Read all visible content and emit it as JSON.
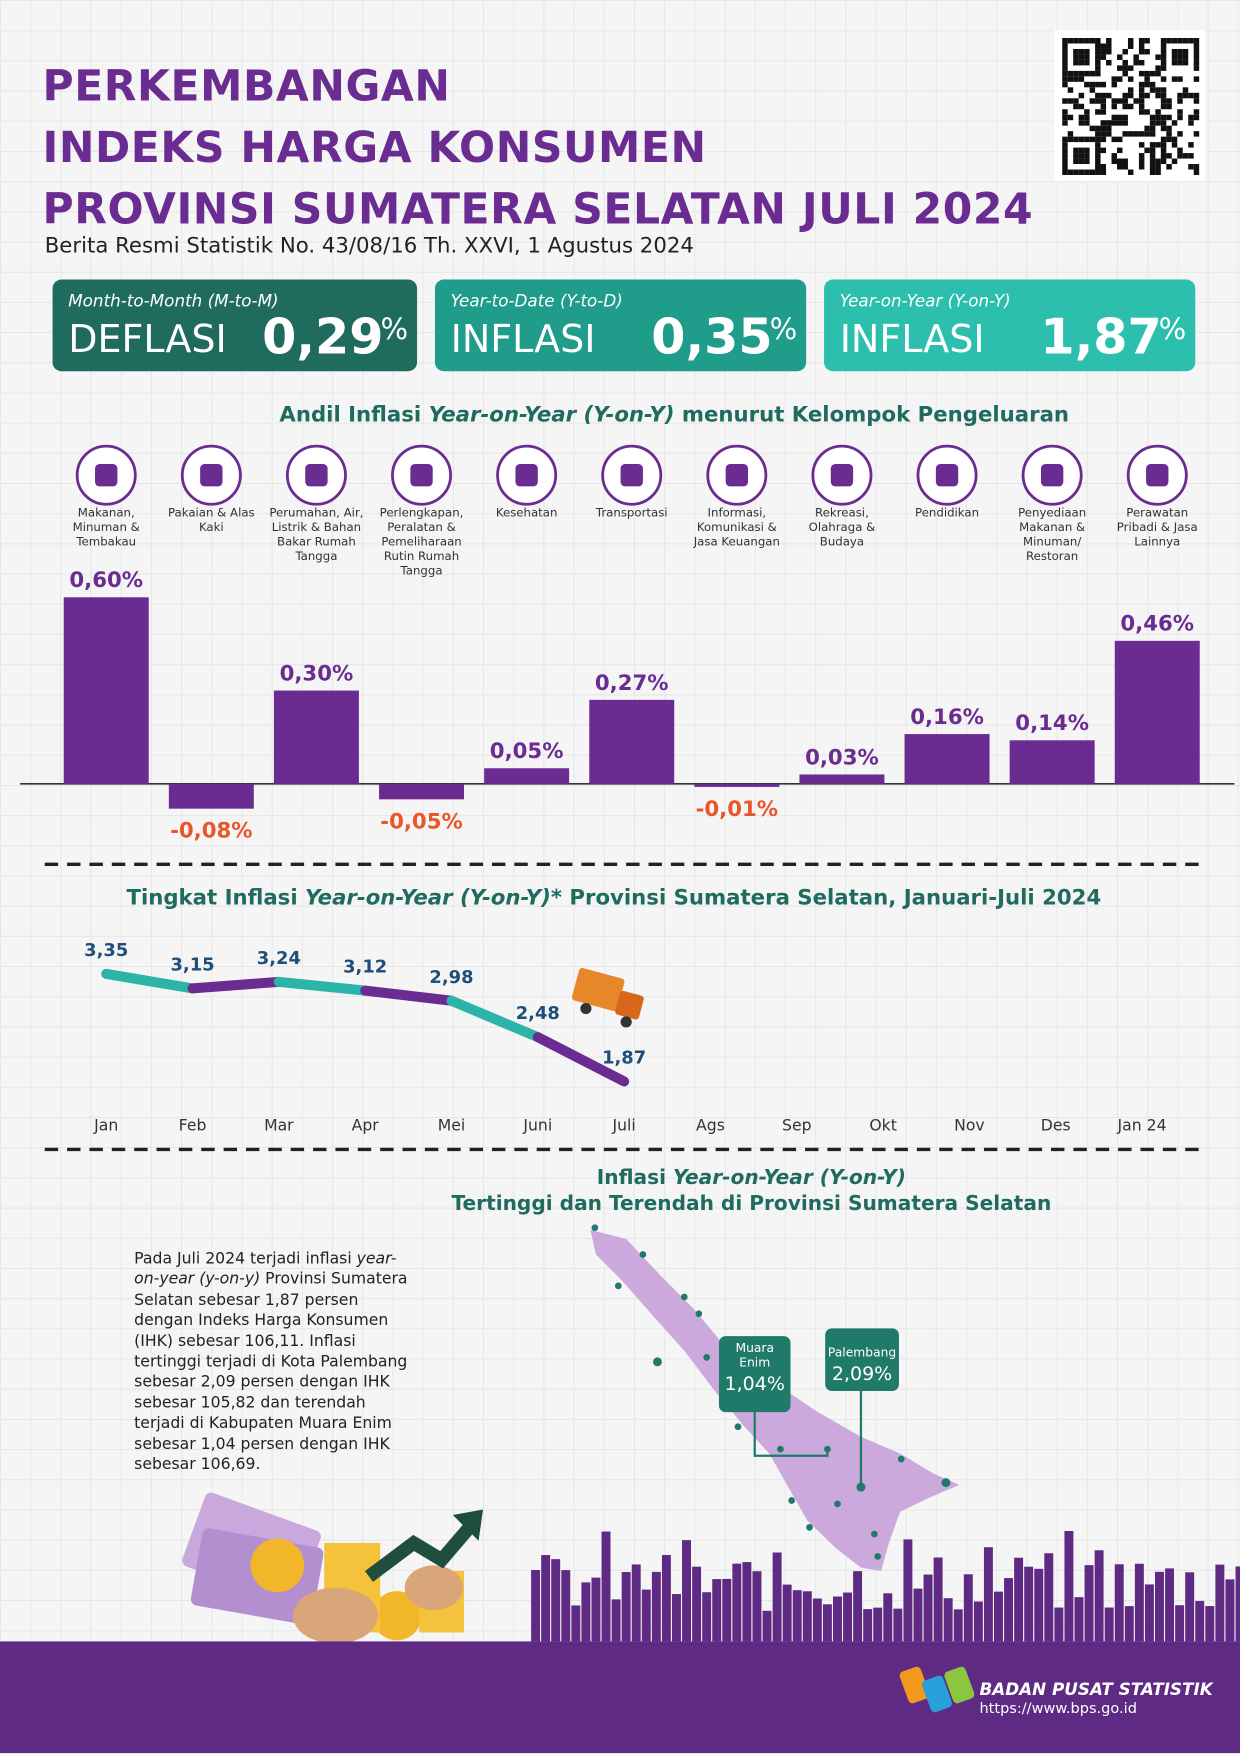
{
  "header": {
    "title": [
      "PERKEMBANGAN",
      "INDEKS HARGA KONSUMEN",
      "PROVINSI SUMATERA SELATAN JULI 2024"
    ],
    "subtitle": "Berita Resmi Statistik No. 43/08/16 Th. XXVI, 1 Agustus 2024"
  },
  "stats": [
    {
      "label": "Month-to-Month (M-to-M)",
      "kind": "DEFLASI",
      "value": "0,29",
      "unit": "%"
    },
    {
      "label": "Year-to-Date (Y-to-D)",
      "kind": "INFLASI",
      "value": "0,35",
      "unit": "%"
    },
    {
      "label": "Year-on-Year (Y-on-Y)",
      "kind": "INFLASI",
      "value": "1,87",
      "unit": "%"
    }
  ],
  "chart_data": [
    {
      "type": "bar",
      "title": [
        "Andil Inflasi ",
        "Year-on-Year (Y-on-Y)",
        " menurut Kelompok Pengeluaran"
      ],
      "categories": [
        "Makanan, Minuman & Tembakau",
        "Pakaian & Alas Kaki",
        "Perumahan, Air, Listrik & Bahan Bakar Rumah Tangga",
        "Perlengkapan, Peralatan & Pemeliharaan Rutin Rumah Tangga",
        "Kesehatan",
        "Transportasi",
        "Informasi, Komunikasi & Jasa Keuangan",
        "Rekreasi, Olahraga & Budaya",
        "Pendidikan",
        "Penyediaan Makanan & Minuman/ Restoran",
        "Perawatan Pribadi & Jasa Lainnya"
      ],
      "values": [
        0.6,
        -0.08,
        0.3,
        -0.05,
        0.05,
        0.27,
        -0.01,
        0.03,
        0.16,
        0.14,
        0.46
      ],
      "value_labels": [
        "0,60%",
        "-0,08%",
        "0,30%",
        "-0,05%",
        "0,05%",
        "0,27%",
        "-0,01%",
        "0,03%",
        "0,16%",
        "0,14%",
        "0,46%"
      ],
      "color": "#6a2c91",
      "label_color": "#6a2c91",
      "negative_label_color": "#e8562a"
    },
    {
      "type": "line",
      "title": [
        "Tingkat Inflasi ",
        "Year-on-Year (Y-on-Y)",
        "* Provinsi Sumatera Selatan, Januari-Juli 2024"
      ],
      "categories": [
        "Jan",
        "Feb",
        "Mar",
        "Apr",
        "Mei",
        "Juni",
        "Juli",
        "Ags",
        "Sep",
        "Okt",
        "Nov",
        "Des",
        "Jan 24"
      ],
      "values": [
        3.35,
        3.15,
        3.24,
        3.12,
        2.98,
        2.48,
        1.87,
        null,
        null,
        null,
        null,
        null,
        null
      ],
      "value_labels": [
        "3,35",
        "3,15",
        "3,24",
        "3,12",
        "2,98",
        "2,48",
        "1,87",
        null,
        null,
        null,
        null,
        null,
        null
      ],
      "colors": [
        "#2bb5a8",
        "#6a2c91"
      ],
      "label_color": "#1f4e79"
    }
  ],
  "map": {
    "title": [
      [
        "Inflasi ",
        "Year-on-Year (Y-on-Y)"
      ],
      [
        "Tertinggi dan Terendah di Provinsi Sumatera Selatan"
      ]
    ],
    "callouts": [
      {
        "name": "Muara Enim",
        "value": "1,04%"
      },
      {
        "name": "Palembang",
        "value": "2,09%"
      }
    ]
  },
  "description": [
    "Pada Juli 2024 terjadi inflasi ",
    "year-on-year (y-on-y)",
    " Provinsi Sumatera Selatan sebesar 1,87 persen dengan Indeks Harga Konsumen (IHK) sebesar 106,11. Inflasi tertinggi terjadi di Kota Palembang sebesar 2,09 persen dengan IHK sebesar 105,82 dan terendah terjadi di Kabupaten Muara Enim sebesar 1,04 persen dengan IHK sebesar 106,69."
  ],
  "footer": {
    "org": "BADAN PUSAT STATISTIK",
    "url": "https://www.bps.go.id"
  }
}
